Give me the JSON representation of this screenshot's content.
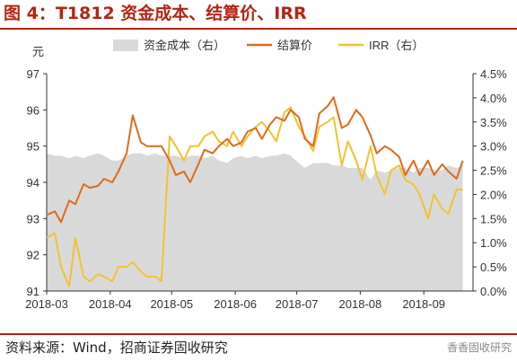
{
  "figure": {
    "title": "图 4：T1812 资金成本、结算价、IRR",
    "source": "资料来源：Wind，招商证券固收研究",
    "watermark": "香香固收研究"
  },
  "chart_data": {
    "type": "line",
    "left_unit": "元",
    "x_ticks": [
      "2018-03",
      "2018-04",
      "2018-05",
      "2018-06",
      "2018-07",
      "2018-08",
      "2018-09"
    ],
    "y_left": {
      "ticks": [
        "91",
        "92",
        "93",
        "94",
        "95",
        "96",
        "97"
      ],
      "ylim": [
        91,
        97
      ]
    },
    "y_right": {
      "ticks": [
        "0.0%",
        "0.5%",
        "1.0%",
        "1.5%",
        "2.0%",
        "2.5%",
        "3.0%",
        "3.5%",
        "4.0%",
        "4.5%"
      ],
      "ylim": [
        0,
        4.5
      ]
    },
    "legend": [
      "资金成本（右）",
      "结算价",
      "IRR（右）"
    ],
    "legend_position": "top",
    "colors": {
      "funding": "#d9d9d9",
      "settle": "#e06a1a",
      "irr": "#f2c230",
      "title": "#b42414"
    },
    "x_dates": [
      "2018-03-01",
      "2018-03-05",
      "2018-03-08",
      "2018-03-12",
      "2018-03-15",
      "2018-03-19",
      "2018-03-22",
      "2018-03-26",
      "2018-03-29",
      "2018-04-02",
      "2018-04-05",
      "2018-04-09",
      "2018-04-12",
      "2018-04-16",
      "2018-04-19",
      "2018-04-23",
      "2018-04-26",
      "2018-04-30",
      "2018-05-03",
      "2018-05-07",
      "2018-05-10",
      "2018-05-14",
      "2018-05-17",
      "2018-05-21",
      "2018-05-24",
      "2018-05-28",
      "2018-05-31",
      "2018-06-04",
      "2018-06-07",
      "2018-06-11",
      "2018-06-14",
      "2018-06-18",
      "2018-06-21",
      "2018-06-25",
      "2018-06-28",
      "2018-07-02",
      "2018-07-05",
      "2018-07-09",
      "2018-07-12",
      "2018-07-16",
      "2018-07-19",
      "2018-07-23",
      "2018-07-26",
      "2018-07-30",
      "2018-08-02",
      "2018-08-06",
      "2018-08-09",
      "2018-08-13",
      "2018-08-16",
      "2018-08-20",
      "2018-08-23",
      "2018-08-27",
      "2018-08-30",
      "2018-09-03",
      "2018-09-06",
      "2018-09-10",
      "2018-09-13",
      "2018-09-17",
      "2018-09-20"
    ],
    "series": [
      {
        "name": "资金成本（右）",
        "type": "area",
        "axis": "right",
        "values": [
          2.85,
          2.8,
          2.8,
          2.75,
          2.8,
          2.75,
          2.8,
          2.85,
          2.8,
          2.7,
          2.7,
          2.8,
          2.85,
          2.85,
          2.8,
          2.85,
          2.8,
          2.8,
          2.8,
          2.75,
          2.8,
          2.8,
          2.75,
          2.8,
          2.7,
          2.65,
          2.75,
          2.8,
          2.75,
          2.8,
          2.75,
          2.8,
          2.8,
          2.85,
          2.8,
          2.65,
          2.55,
          2.65,
          2.65,
          2.65,
          2.6,
          2.6,
          2.55,
          2.55,
          2.55,
          2.3,
          2.5,
          2.45,
          2.5,
          2.55,
          2.55,
          2.45,
          2.55,
          2.55,
          2.5,
          2.5,
          2.6,
          2.55,
          2.6
        ]
      },
      {
        "name": "结算价",
        "type": "line",
        "axis": "left",
        "values": [
          93.1,
          93.2,
          92.9,
          93.5,
          93.4,
          93.95,
          93.85,
          93.9,
          94.1,
          94.0,
          94.3,
          94.8,
          95.85,
          95.1,
          95.0,
          95.0,
          95.0,
          94.6,
          94.2,
          94.3,
          94.0,
          94.5,
          94.9,
          94.8,
          95.0,
          95.2,
          95.0,
          95.1,
          95.4,
          95.5,
          95.2,
          95.6,
          95.8,
          95.7,
          96.0,
          95.8,
          95.2,
          95.0,
          95.9,
          96.1,
          96.35,
          95.5,
          95.6,
          96.0,
          95.8,
          95.3,
          94.8,
          95.0,
          94.9,
          94.7,
          94.2,
          94.6,
          94.2,
          94.6,
          94.2,
          94.5,
          94.3,
          94.1,
          94.6
        ]
      },
      {
        "name": "IRR（右）",
        "type": "line",
        "axis": "right",
        "values": [
          1.1,
          1.2,
          0.5,
          0.1,
          1.1,
          0.3,
          0.2,
          0.35,
          0.3,
          0.2,
          0.5,
          0.5,
          0.6,
          0.4,
          0.3,
          0.3,
          0.2,
          3.2,
          3.0,
          2.7,
          3.0,
          3.0,
          3.2,
          3.3,
          3.1,
          3.0,
          3.3,
          3.0,
          3.2,
          3.4,
          3.5,
          3.3,
          3.1,
          3.7,
          3.8,
          3.4,
          3.2,
          2.9,
          3.4,
          3.5,
          3.6,
          2.6,
          3.1,
          2.7,
          2.3,
          3.0,
          2.4,
          2.0,
          2.5,
          2.6,
          2.3,
          2.2,
          2.0,
          1.5,
          2.0,
          1.7,
          1.6,
          2.1,
          2.1
        ]
      }
    ]
  }
}
